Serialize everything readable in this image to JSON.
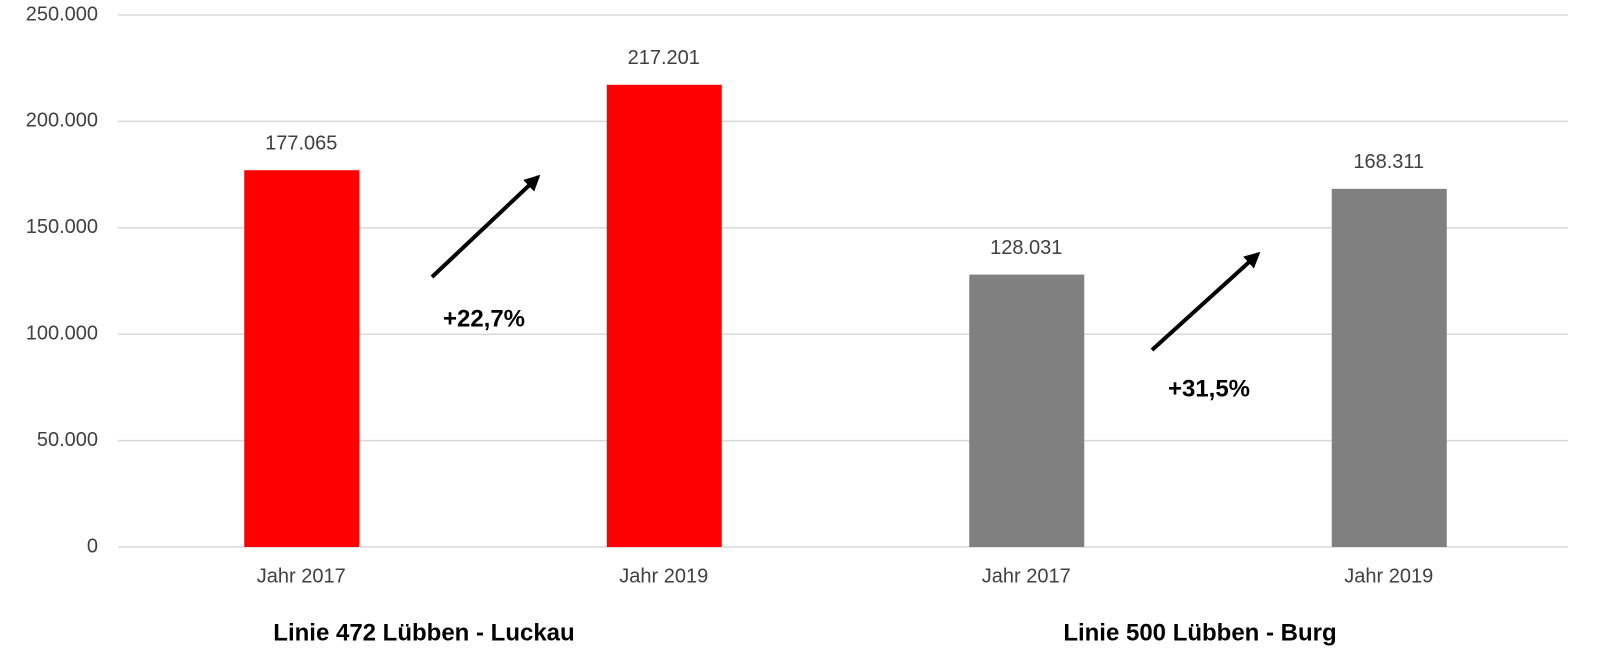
{
  "chart_data": {
    "type": "bar",
    "categories": [
      "Jahr 2017",
      "Jahr 2019",
      "Jahr 2017",
      "Jahr 2019"
    ],
    "values": [
      177065,
      217201,
      128031,
      168311
    ],
    "value_labels": [
      "177.065",
      "217.201",
      "128.031",
      "168.311"
    ],
    "colors": [
      "#ff0000",
      "#ff0000",
      "#808080",
      "#808080"
    ],
    "group_labels": [
      "Linie 472 Lübben - Luckau",
      "Linie 500 Lübben - Burg"
    ],
    "annotations": [
      "+22,7%",
      "+31,5%"
    ],
    "ylim": [
      0,
      250000
    ],
    "yticks": [
      0,
      {
        "value": 50000,
        "label": "50.000"
      },
      {
        "value": 100000,
        "label": "100.000"
      },
      {
        "value": 150000,
        "label": "150.000"
      },
      {
        "value": 200000,
        "label": "200.000"
      },
      {
        "value": 250000,
        "label": "250.000"
      }
    ],
    "grid": true
  }
}
